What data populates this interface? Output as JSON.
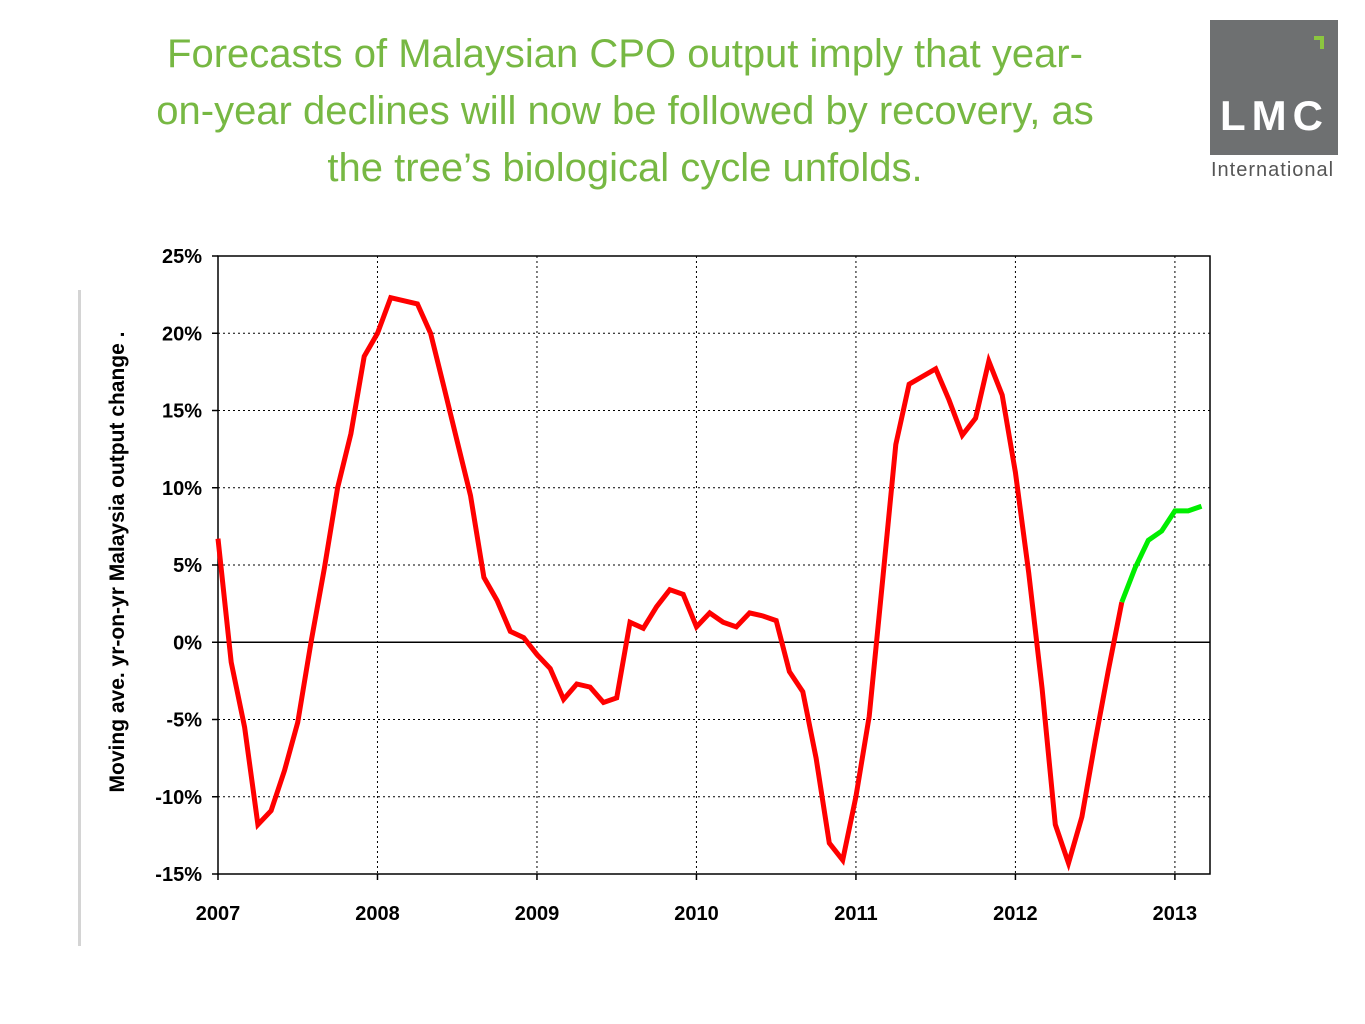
{
  "title_lines": [
    "Forecasts of Malaysian CPO output imply that year-",
    "on-year declines will now be followed by recovery, as",
    "the tree’s biological cycle unfolds."
  ],
  "logo": {
    "text": "LMC",
    "subtext": "International"
  },
  "colors": {
    "title": "#77b843",
    "actual": "#ff0000",
    "forecast": "#00ee00",
    "logo_bg": "#6e7071",
    "logo_mark": "#8cc63f"
  },
  "chart_data": {
    "type": "line",
    "ylabel": "Moving ave. yr-on-yr Malaysia output change .",
    "xlabel": "",
    "x_unit": "year",
    "xlim": [
      2007,
      2013.22
    ],
    "ylim": [
      -15,
      25
    ],
    "x_ticks": [
      2007,
      2008,
      2009,
      2010,
      2011,
      2012,
      2013
    ],
    "x_tick_labels": [
      "2007",
      "2008",
      "2009",
      "2010",
      "2011",
      "2012",
      "2013"
    ],
    "y_ticks": [
      25,
      20,
      15,
      10,
      5,
      0,
      -5,
      -10,
      -15
    ],
    "y_tick_labels": [
      "25%",
      "20%",
      "15%",
      "10%",
      "5%",
      "0%",
      "-5%",
      "-10%",
      "-15%"
    ],
    "grid": "dotted",
    "zero_line": true,
    "series": [
      {
        "color": "#ff0000",
        "points": [
          [
            2007.0,
            6.7
          ],
          [
            2007.083,
            -1.3
          ],
          [
            2007.167,
            -5.5
          ],
          [
            2007.25,
            -11.8
          ],
          [
            2007.333,
            -10.9
          ],
          [
            2007.417,
            -8.3
          ],
          [
            2007.5,
            -5.2
          ],
          [
            2007.583,
            0.0
          ],
          [
            2007.667,
            4.8
          ],
          [
            2007.75,
            10.0
          ],
          [
            2007.833,
            13.5
          ],
          [
            2007.917,
            18.5
          ],
          [
            2008.0,
            20.0
          ],
          [
            2008.083,
            22.3
          ],
          [
            2008.167,
            22.1
          ],
          [
            2008.25,
            21.9
          ],
          [
            2008.333,
            20.0
          ],
          [
            2008.417,
            16.5
          ],
          [
            2008.5,
            13.0
          ],
          [
            2008.583,
            9.5
          ],
          [
            2008.667,
            4.2
          ],
          [
            2008.75,
            2.7
          ],
          [
            2008.833,
            0.7
          ],
          [
            2008.917,
            0.3
          ],
          [
            2009.0,
            -0.8
          ],
          [
            2009.083,
            -1.7
          ],
          [
            2009.167,
            -3.7
          ],
          [
            2009.25,
            -2.7
          ],
          [
            2009.333,
            -2.9
          ],
          [
            2009.417,
            -3.9
          ],
          [
            2009.5,
            -3.6
          ],
          [
            2009.583,
            1.3
          ],
          [
            2009.667,
            0.9
          ],
          [
            2009.75,
            2.3
          ],
          [
            2009.833,
            3.4
          ],
          [
            2009.917,
            3.1
          ],
          [
            2010.0,
            1.0
          ],
          [
            2010.083,
            1.9
          ],
          [
            2010.167,
            1.3
          ],
          [
            2010.25,
            1.0
          ],
          [
            2010.333,
            1.9
          ],
          [
            2010.417,
            1.7
          ],
          [
            2010.5,
            1.4
          ],
          [
            2010.583,
            -1.9
          ],
          [
            2010.667,
            -3.2
          ],
          [
            2010.75,
            -7.5
          ],
          [
            2010.833,
            -13.0
          ],
          [
            2010.917,
            -14.1
          ],
          [
            2011.0,
            -10.0
          ],
          [
            2011.083,
            -4.8
          ],
          [
            2011.167,
            4.0
          ],
          [
            2011.25,
            12.8
          ],
          [
            2011.333,
            16.7
          ],
          [
            2011.417,
            17.2
          ],
          [
            2011.5,
            17.7
          ],
          [
            2011.583,
            15.7
          ],
          [
            2011.667,
            13.4
          ],
          [
            2011.75,
            14.5
          ],
          [
            2011.833,
            18.2
          ],
          [
            2011.917,
            16.0
          ],
          [
            2012.0,
            11.0
          ],
          [
            2012.083,
            4.5
          ],
          [
            2012.167,
            -3.0
          ],
          [
            2012.25,
            -11.8
          ],
          [
            2012.333,
            -14.3
          ],
          [
            2012.417,
            -11.3
          ],
          [
            2012.5,
            -6.4
          ],
          [
            2012.583,
            -1.8
          ],
          [
            2012.667,
            2.6
          ]
        ]
      },
      {
        "color": "#00ee00",
        "points": [
          [
            2012.667,
            2.6
          ],
          [
            2012.75,
            4.8
          ],
          [
            2012.833,
            6.6
          ],
          [
            2012.917,
            7.2
          ],
          [
            2013.0,
            8.5
          ],
          [
            2013.083,
            8.5
          ],
          [
            2013.167,
            8.8
          ]
        ]
      }
    ]
  }
}
